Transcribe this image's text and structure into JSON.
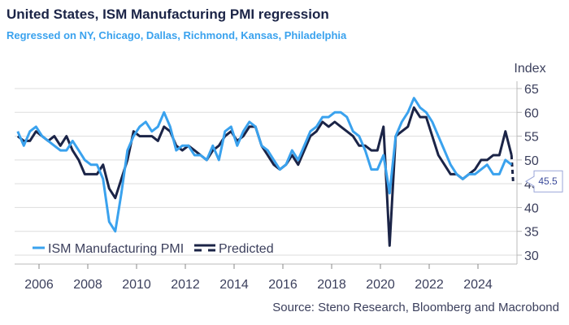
{
  "header": {
    "title": "United States, ISM Manufacturing PMI regression",
    "subtitle": "Regressed on NY, Chicago, Dallas, Richmond, Kansas, Philadelphia"
  },
  "source": "Source: Steno Research, Bloomberg and Macrobond",
  "colors": {
    "ism": "#3aa2ee",
    "predicted": "#1b2447",
    "grid": "#dddddd",
    "text": "#3b3f5c"
  },
  "chart_data": {
    "type": "line",
    "title": "United States, ISM Manufacturing PMI regression",
    "ylabel": "Index",
    "ylim": [
      28,
      66
    ],
    "yticks": [
      30,
      35,
      40,
      45,
      50,
      55,
      60,
      65
    ],
    "xlim": [
      2005.0,
      2025.7
    ],
    "xticks": [
      2006,
      2008,
      2010,
      2012,
      2014,
      2016,
      2018,
      2020,
      2022,
      2024
    ],
    "grid": true,
    "legend_position": "bottom-left",
    "frequency": "quarterly (approx.)",
    "x_start": 2005.0,
    "series": [
      {
        "name": "ISM Manufacturing PMI",
        "style": "solid",
        "values": [
          56,
          53,
          56,
          57,
          55,
          54,
          53,
          52,
          52,
          54,
          52,
          50,
          49,
          49,
          46,
          37,
          35,
          43,
          52,
          55,
          57,
          58,
          56,
          57,
          60,
          57,
          52,
          53,
          53,
          51,
          51,
          50,
          53,
          50,
          56,
          57,
          53,
          56,
          58,
          57,
          53,
          52,
          50,
          48,
          49,
          52,
          50,
          53,
          56,
          57,
          59,
          59,
          60,
          60,
          59,
          56,
          55,
          52,
          48,
          48,
          51,
          43,
          55,
          58,
          60,
          63,
          61,
          60,
          58,
          55,
          52,
          49,
          47,
          46,
          47,
          47,
          48,
          49,
          47,
          47,
          50,
          49
        ]
      },
      {
        "name": "Predicted",
        "style": "solid+dashed",
        "values": [
          55,
          54,
          54,
          56,
          55,
          54,
          55,
          53,
          55,
          52,
          50,
          47,
          47,
          47,
          49,
          44,
          42,
          46,
          50,
          56,
          55,
          55,
          55,
          54,
          57,
          56,
          53,
          52,
          53,
          52,
          51,
          50,
          52,
          53,
          55,
          56,
          54,
          55,
          57,
          57,
          53,
          51,
          49,
          48,
          49,
          51,
          49,
          52,
          55,
          56,
          58,
          57,
          58,
          57,
          56,
          55,
          53,
          53,
          52,
          52,
          57,
          32,
          55,
          56,
          57,
          61,
          59,
          59,
          55,
          51,
          49,
          47,
          47,
          46,
          47,
          48,
          50,
          50,
          51,
          51,
          56,
          51
        ],
        "forecast": 45.5
      }
    ],
    "annotations": [
      {
        "label": "45.5",
        "value": 45.5
      }
    ]
  }
}
